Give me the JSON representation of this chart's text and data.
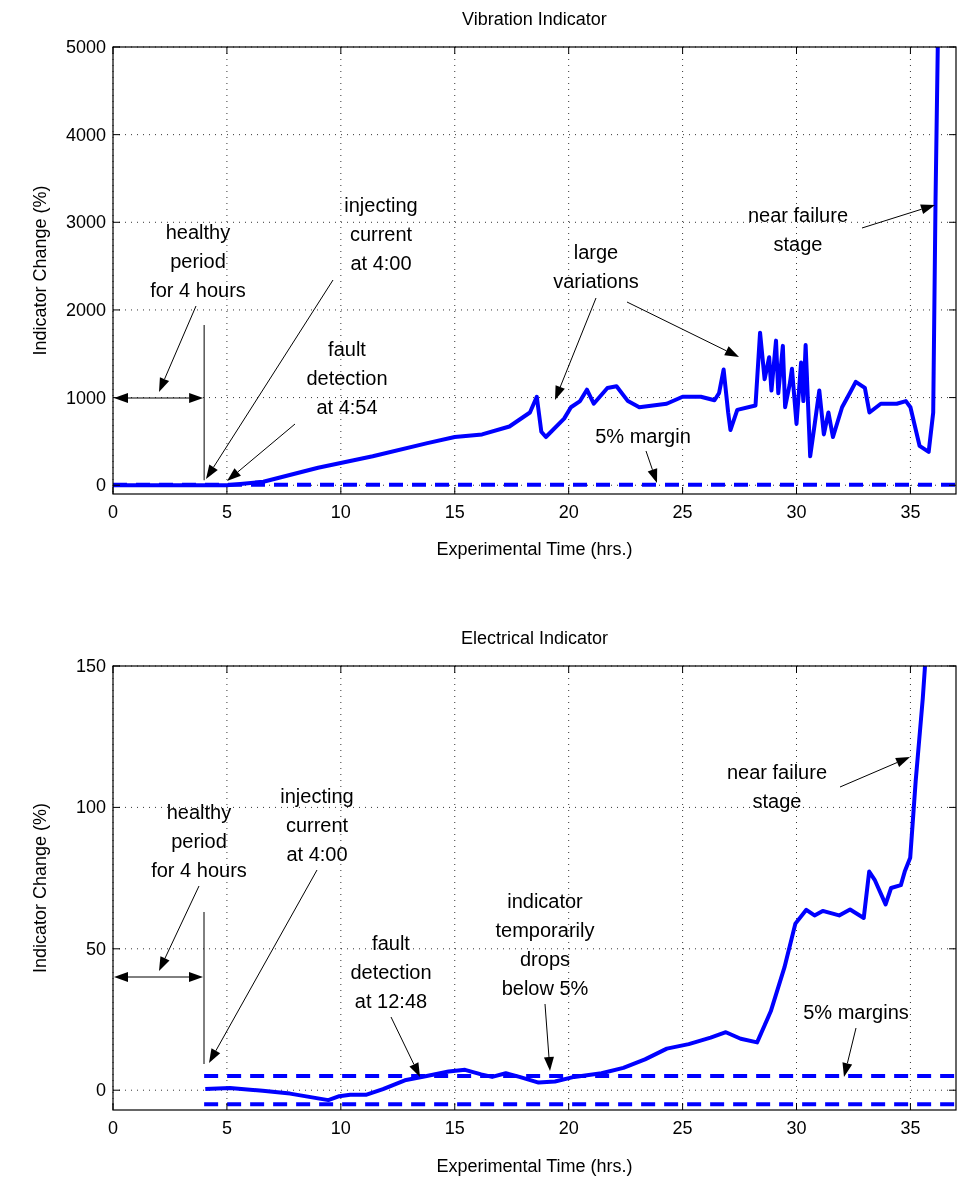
{
  "chart_data": [
    {
      "type": "line",
      "title": "Vibration Indicator",
      "xlabel": "Experimental Time (hrs.)",
      "ylabel": "Indicator Change (%)",
      "xlim": [
        0,
        37
      ],
      "ylim": [
        -100,
        5000
      ],
      "xticks": [
        0,
        5,
        10,
        15,
        20,
        25,
        30,
        35
      ],
      "yticks": [
        0,
        1000,
        2000,
        3000,
        4000,
        5000
      ],
      "grid": true,
      "line_style": "solid",
      "series": [
        {
          "color": "#0000ff",
          "x": [
            0,
            5,
            6.6,
            9,
            11.4,
            13.8,
            15,
            16.2,
            17.4,
            18.3,
            18.6,
            18.8,
            19,
            19.8,
            20.1,
            20.5,
            20.8,
            21.1,
            21.7,
            22.1,
            22.6,
            23.1,
            24.3,
            25,
            25.8,
            26.4,
            26.6,
            26.8,
            27,
            27.1,
            27.4,
            28.2,
            28.4,
            28.6,
            28.8,
            28.9,
            29.1,
            29.2,
            29.4,
            29.5,
            29.7,
            29.8,
            30,
            30.2,
            30.3,
            30.4,
            30.6,
            30.8,
            31,
            31.2,
            31.4,
            31.6,
            32,
            32.4,
            32.6,
            33,
            33.2,
            33.7,
            34.4,
            34.8,
            35,
            35.4,
            35.8,
            36,
            36.1,
            36.2
          ],
          "values": [
            0,
            0,
            40,
            200,
            330,
            480,
            550,
            580,
            670,
            830,
            1010,
            610,
            550,
            760,
            890,
            960,
            1090,
            930,
            1110,
            1130,
            960,
            890,
            930,
            1010,
            1010,
            970,
            1050,
            1320,
            830,
            630,
            860,
            910,
            1740,
            1210,
            1460,
            1080,
            1650,
            1050,
            1590,
            890,
            1150,
            1330,
            700,
            1400,
            960,
            1600,
            330,
            700,
            1080,
            580,
            830,
            550,
            890,
            1080,
            1180,
            1110,
            830,
            930,
            930,
            960,
            890,
            450,
            380,
            830,
            3220,
            5000
          ]
        },
        {
          "color": "#0000ff",
          "line_style": "dashed",
          "x": [
            0,
            37
          ],
          "values": [
            5,
            5
          ]
        }
      ],
      "annotations": [
        {
          "text": "healthy\nperiod\nfor 4 hours",
          "x": 4,
          "y": 0
        },
        "injecting\ncurrent\nat 4:00",
        "fault\ndetection\nat 4:54",
        "large\nvariations",
        "near failure\nstage",
        "5% margin"
      ]
    },
    {
      "type": "line",
      "title": "Electrical Indicator",
      "xlabel": "Experimental Time (hrs.)",
      "ylabel": "Indicator Change (%)",
      "xlim": [
        0,
        37
      ],
      "ylim": [
        -7,
        150
      ],
      "xticks": [
        0,
        5,
        10,
        15,
        20,
        25,
        30,
        35
      ],
      "yticks": [
        0,
        50,
        100,
        150
      ],
      "grid": true,
      "line_style": "solid",
      "series": [
        {
          "color": "#0000ff",
          "x": [
            4.05,
            5.13,
            6.57,
            7.77,
            9.45,
            9.93,
            10.41,
            11.13,
            11.85,
            12.81,
            13.77,
            14.73,
            15.45,
            16.16,
            16.64,
            17.24,
            17.84,
            18.68,
            19.4,
            20.24,
            21.44,
            22.4,
            23.35,
            24.31,
            25.27,
            26.23,
            26.9,
            27.55,
            28.27,
            28.87,
            29.47,
            29.95,
            30.43,
            30.79,
            31.15,
            31.87,
            32.35,
            32.95,
            33.19,
            33.43,
            33.91,
            34.15,
            34.58,
            34.75,
            34.99,
            35.23,
            35.54,
            35.64
          ],
          "values": [
            0.4,
            0.8,
            -0.2,
            -1.2,
            -3.5,
            -2.1,
            -1.6,
            -1.6,
            0.4,
            3.5,
            5.0,
            6.6,
            7.2,
            5.6,
            4.7,
            6.0,
            4.7,
            2.7,
            3.1,
            4.7,
            6.0,
            7.9,
            10.9,
            14.7,
            16.3,
            18.6,
            20.5,
            18.2,
            16.9,
            27.9,
            43.4,
            58.9,
            63.8,
            61.8,
            63.4,
            61.8,
            63.9,
            60.9,
            77.3,
            74.4,
            65.7,
            71.5,
            72.5,
            77.3,
            82.2,
            109.3,
            138.4,
            150
          ]
        },
        {
          "color": "#0000ff",
          "line_style": "dashed",
          "x": [
            4,
            37
          ],
          "values": [
            5,
            5
          ]
        },
        {
          "color": "#0000ff",
          "line_style": "dashed",
          "x": [
            4,
            37
          ],
          "values": [
            -5,
            -5
          ]
        }
      ],
      "annotations": [
        "healthy\nperiod\nfor 4 hours",
        "injecting\ncurrent\nat 4:00",
        "fault\ndetection\nat 12:48",
        "indicator\ntemporarily\ndrops\nbelow 5%",
        "5% margins",
        "near failure\nstage"
      ]
    }
  ]
}
